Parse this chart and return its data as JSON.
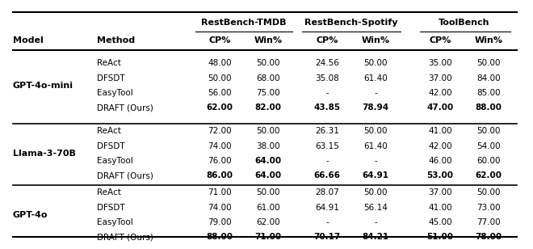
{
  "groups": [
    {
      "model": "GPT-4o-mini",
      "rows": [
        [
          "ReAct",
          "48.00",
          "50.00",
          "24.56",
          "50.00",
          "35.00",
          "50.00",
          false,
          false,
          false,
          false,
          false,
          false
        ],
        [
          "DFSDT",
          "50.00",
          "68.00",
          "35.08",
          "61.40",
          "37.00",
          "84.00",
          false,
          false,
          false,
          false,
          false,
          false
        ],
        [
          "EasyTool",
          "56.00",
          "75.00",
          "-",
          "-",
          "42.00",
          "85.00",
          false,
          false,
          false,
          false,
          false,
          false
        ],
        [
          "DRAFT (Ours)",
          "62.00",
          "82.00",
          "43.85",
          "78.94",
          "47.00",
          "88.00",
          true,
          true,
          true,
          true,
          true,
          true
        ]
      ]
    },
    {
      "model": "Llama-3-70B",
      "rows": [
        [
          "ReAct",
          "72.00",
          "50.00",
          "26.31",
          "50.00",
          "41.00",
          "50.00",
          false,
          false,
          false,
          false,
          false,
          false
        ],
        [
          "DFSDT",
          "74.00",
          "38.00",
          "63.15",
          "61.40",
          "42.00",
          "54.00",
          false,
          false,
          false,
          false,
          false,
          false
        ],
        [
          "EasyTool",
          "76.00",
          "64.00",
          "-",
          "-",
          "46.00",
          "60.00",
          false,
          true,
          false,
          false,
          false,
          false
        ],
        [
          "DRAFT (Ours)",
          "86.00",
          "64.00",
          "66.66",
          "64.91",
          "53.00",
          "62.00",
          true,
          true,
          true,
          true,
          true,
          true
        ]
      ]
    },
    {
      "model": "GPT-4o",
      "rows": [
        [
          "ReAct",
          "71.00",
          "50.00",
          "28.07",
          "50.00",
          "37.00",
          "50.00",
          false,
          false,
          false,
          false,
          false,
          false
        ],
        [
          "DFSDT",
          "74.00",
          "61.00",
          "64.91",
          "56.14",
          "41.00",
          "73.00",
          false,
          false,
          false,
          false,
          false,
          false
        ],
        [
          "EasyTool",
          "79.00",
          "62.00",
          "-",
          "-",
          "45.00",
          "77.00",
          false,
          false,
          false,
          false,
          false,
          false
        ],
        [
          "DRAFT (Ours)",
          "88.00",
          "71.00",
          "70.17",
          "84.21",
          "51.00",
          "78.00",
          true,
          true,
          true,
          true,
          true,
          true
        ]
      ]
    }
  ],
  "bench_headers": [
    "RestBench-TMDB",
    "RestBench-Spotify",
    "ToolBench"
  ],
  "col2_header": [
    "CP%",
    "Win%",
    "CP%",
    "Win%",
    "CP%",
    "Win%"
  ],
  "background_color": "#ffffff",
  "text_color": "#000000",
  "fs_header1": 8.0,
  "fs_header2": 8.0,
  "fs_model": 8.0,
  "fs_method": 7.5,
  "fs_data": 7.5
}
